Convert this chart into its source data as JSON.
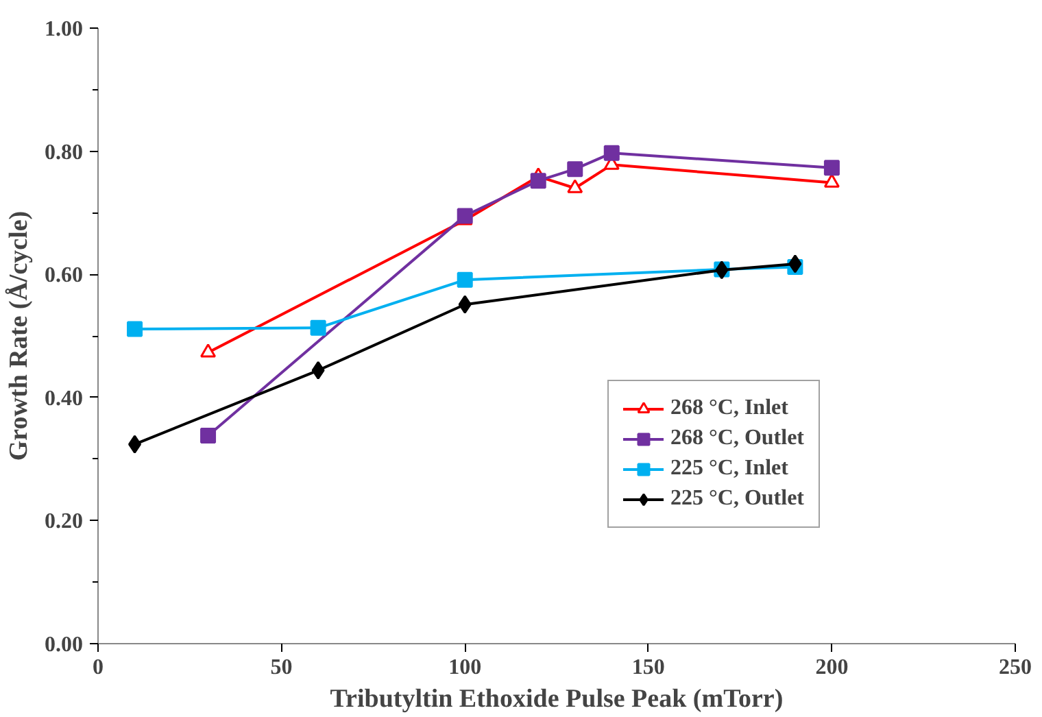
{
  "chart_data": {
    "type": "line",
    "xlabel": "Tributyltin Ethoxide Pulse Peak (mTorr)",
    "ylabel": "Growth Rate (Å/cycle)",
    "xlim": [
      0,
      250
    ],
    "xticks": [
      0,
      50,
      100,
      150,
      200,
      250
    ],
    "ylim": [
      0,
      1
    ],
    "yticks": [
      {
        "value": 0,
        "label": "0.00"
      },
      {
        "value": 0.2,
        "label": "0.20"
      },
      {
        "value": 0.4,
        "label": "0.40"
      },
      {
        "value": 0.6,
        "label": "0.60"
      },
      {
        "value": 0.8,
        "label": "0.80"
      },
      {
        "value": 1,
        "label": "1.00"
      }
    ],
    "grid": false,
    "legend": "bottom right",
    "series": [
      {
        "name": "268 °C, Inlet",
        "color": "#ff0000",
        "marker": "triangle",
        "x": [
          30,
          100,
          120,
          130,
          140,
          200
        ],
        "values": [
          0.473,
          0.688,
          0.759,
          0.74,
          0.778,
          0.749
        ]
      },
      {
        "name": "268 °C, Outlet",
        "color": "#7030a0",
        "marker": "square",
        "x": [
          30,
          100,
          120,
          130,
          140,
          200
        ],
        "values": [
          0.338,
          0.695,
          0.752,
          0.771,
          0.797,
          0.773
        ]
      },
      {
        "name": "225 °C, Inlet",
        "color": "#00b0f0",
        "marker": "square",
        "x": [
          10,
          60,
          100,
          170,
          190
        ],
        "values": [
          0.511,
          0.513,
          0.591,
          0.608,
          0.612
        ]
      },
      {
        "name": "225 °C, Outlet",
        "color": "#000000",
        "marker": "diamond",
        "x": [
          10,
          60,
          100,
          170,
          190
        ],
        "values": [
          0.324,
          0.444,
          0.551,
          0.607,
          0.617
        ]
      }
    ]
  }
}
